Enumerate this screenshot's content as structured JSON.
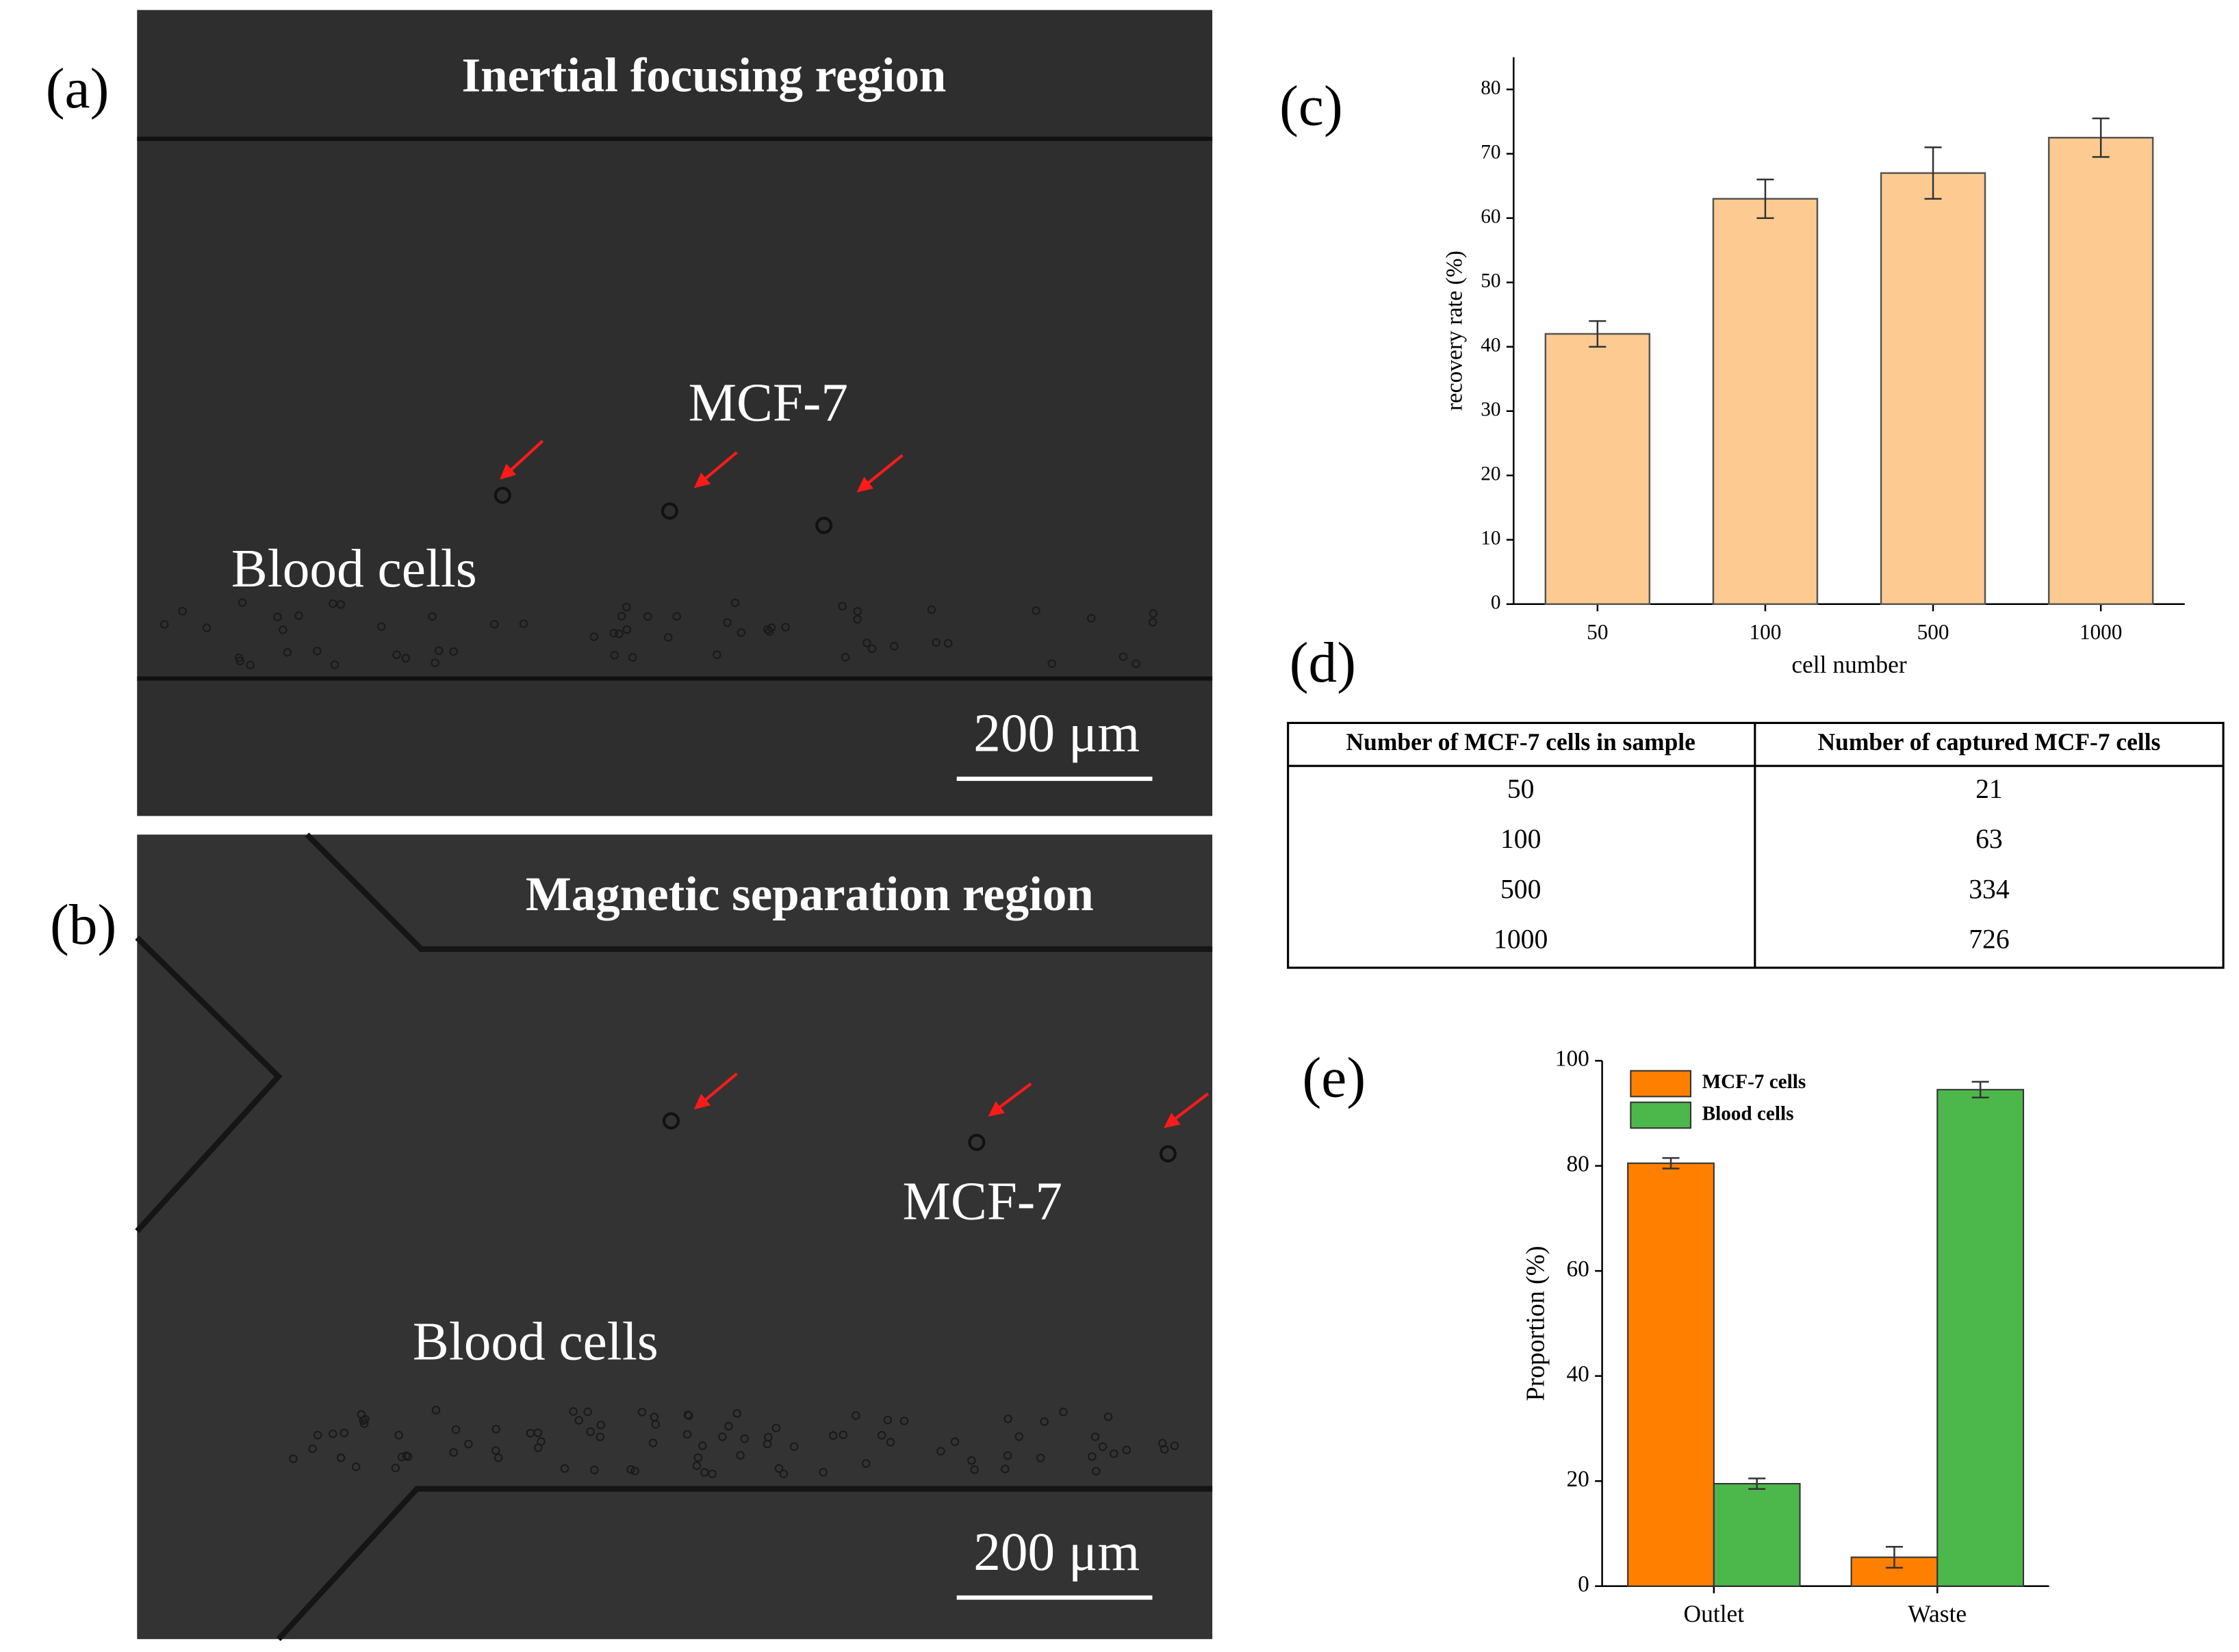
{
  "panel_labels": [
    "(a)",
    "(b)",
    "(c)",
    "(d)",
    "(e)"
  ],
  "images": [
    {
      "title": "Inertial focusing region",
      "target_label": "MCF-7",
      "background_label": "Blood cells",
      "scale_bar": "200 μm"
    },
    {
      "title": "Magnetic separation region",
      "target_label": "MCF-7",
      "background_label": "Blood cells",
      "scale_bar": "200 μm"
    }
  ],
  "chart_data": [
    {
      "type": "bar",
      "categories": [
        "50",
        "100",
        "500",
        "1000"
      ],
      "values": [
        42,
        63,
        67,
        72.5
      ],
      "errors": [
        2,
        3,
        4,
        3
      ],
      "color": "#fdcb92",
      "edge_color": "#555555",
      "xlabel": "cell number",
      "ylabel": "recovery rate (%)",
      "ylim": [
        0,
        85
      ],
      "yticks": [
        0,
        10,
        20,
        30,
        40,
        50,
        60,
        70,
        80
      ]
    },
    {
      "type": "grouped_bar",
      "categories": [
        "Outlet",
        "Waste"
      ],
      "series": [
        {
          "name": "MCF-7 cells",
          "color": "#ff8000",
          "values": [
            80.5,
            5.5
          ],
          "errors": [
            1,
            2
          ]
        },
        {
          "name": "Blood cells",
          "color": "#4cb84c",
          "values": [
            19.5,
            94.5
          ],
          "errors": [
            1,
            1.5
          ]
        }
      ],
      "ylabel": "Proportion (%)",
      "ylim": [
        0,
        100
      ],
      "yticks": [
        0,
        20,
        40,
        60,
        80,
        100
      ],
      "legend": "upper left"
    }
  ],
  "table": {
    "header": [
      "Number of MCF-7 cells in sample",
      "Number of captured MCF-7 cells"
    ],
    "rows": [
      [
        50,
        21
      ],
      [
        100,
        63
      ],
      [
        500,
        334
      ],
      [
        1000,
        726
      ]
    ]
  }
}
